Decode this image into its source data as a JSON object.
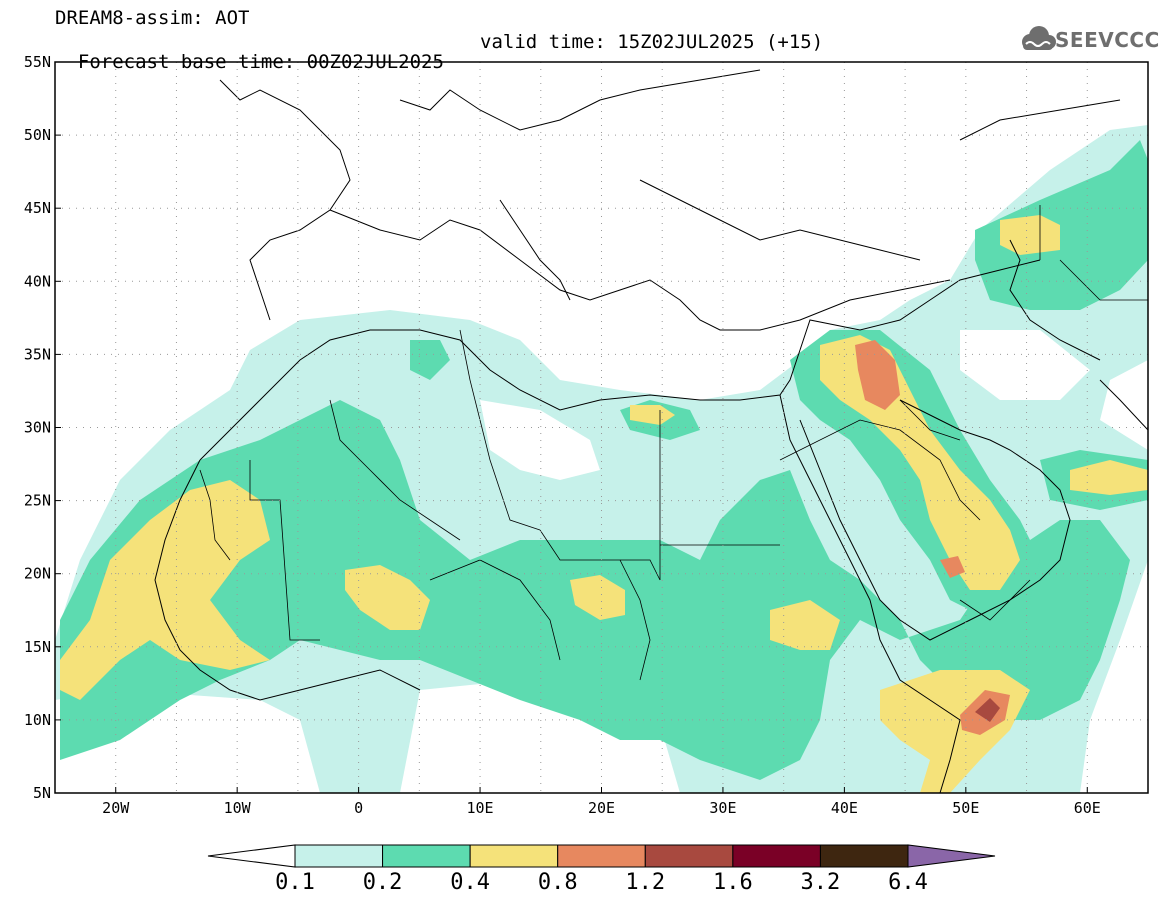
{
  "header": {
    "line1": "DREAM8-assim: AOT",
    "base_time": "Forecast base time: 00Z02JUL2025",
    "valid_time": "valid time: 15Z02JUL2025 (+15)"
  },
  "logo": {
    "text": "SEEVCCC",
    "icon": "cloud-logo-icon"
  },
  "map": {
    "lat_labels": [
      "55N",
      "50N",
      "45N",
      "40N",
      "35N",
      "30N",
      "25N",
      "20N",
      "15N",
      "10N",
      "5N"
    ],
    "lon_labels": [
      "20W",
      "10W",
      "0",
      "10E",
      "20E",
      "30E",
      "40E",
      "50E",
      "60E"
    ],
    "extent": {
      "lon_min": -25,
      "lon_max": 65,
      "lat_min": 5,
      "lat_max": 55
    }
  },
  "colorbar": {
    "labels": [
      "0.1",
      "0.2",
      "0.4",
      "0.8",
      "1.2",
      "1.6",
      "3.2",
      "6.4"
    ],
    "colors": [
      "#c6f1ea",
      "#5ddbb0",
      "#f5e27a",
      "#e7885f",
      "#a8493f",
      "#7a0026",
      "#3e2610",
      "#8a66a8"
    ]
  }
}
